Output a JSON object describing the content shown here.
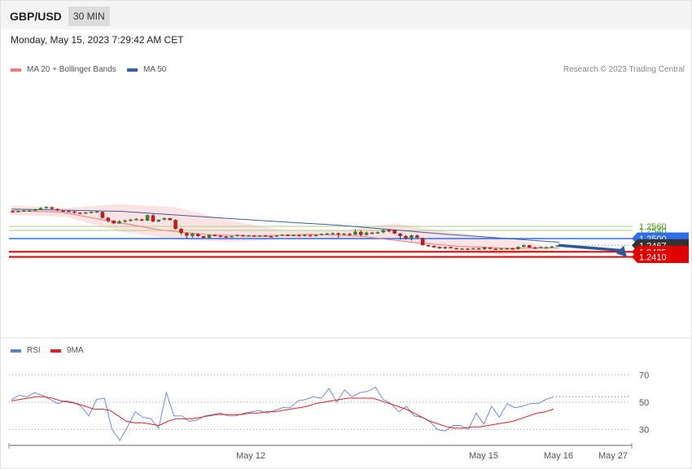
{
  "header": {
    "symbol": "GBP/USD",
    "timeframe": "30 MIN",
    "datetime": "Monday, May 15, 2023 7:29:42 AM CET"
  },
  "legend_main": [
    {
      "label": "MA 20 + Bollinger Bands",
      "color": "#f07a7a"
    },
    {
      "label": "MA 50",
      "color": "#3d5f9e"
    }
  ],
  "credit": "Research © 2023 Trading Central",
  "legend_rsi": [
    {
      "label": "RSI",
      "color": "#5b82d6"
    },
    {
      "label": "9MA",
      "color": "#e02020"
    }
  ],
  "chart_data": [
    {
      "type": "candlestick",
      "title": "GBP/USD",
      "timeframe": "30 MIN",
      "x_tick_labels": [
        "May 12",
        "May 15",
        "May 16",
        "May 27"
      ],
      "price_levels": [
        {
          "label": "1.2560",
          "value": 1.256,
          "color": "#a8d08d",
          "kind": "resistance"
        },
        {
          "label": "1.2540",
          "value": 1.254,
          "color": "#a8d08d",
          "kind": "resistance"
        },
        {
          "label": "1.2500",
          "value": 1.25,
          "color": "#2f6fe6",
          "kind": "pivot"
        },
        {
          "label": "1.2467",
          "value": 1.2467,
          "color": "#333333",
          "kind": "last_price"
        },
        {
          "label": "1.2435",
          "value": 1.2435,
          "color": "#e00000",
          "kind": "support"
        },
        {
          "label": "1.2410",
          "value": 1.241,
          "color": "#e00000",
          "kind": "support"
        }
      ],
      "projection": {
        "from": 1.2467,
        "to": 1.241,
        "direction": "down",
        "color": "#2e5a9c"
      },
      "series": [
        {
          "name": "MA 20 + Bollinger Bands",
          "color": "#f07a7a"
        },
        {
          "name": "MA 50",
          "color": "#3d5f9e"
        }
      ],
      "candles": [
        [
          1.2634,
          1.2633,
          1.2638,
          1.2629
        ],
        [
          1.2632,
          1.2635,
          1.2638,
          1.263
        ],
        [
          1.2634,
          1.2638,
          1.2641,
          1.2632
        ],
        [
          1.2636,
          1.2638,
          1.2641,
          1.2633
        ],
        [
          1.2638,
          1.2643,
          1.2646,
          1.2636
        ],
        [
          1.2644,
          1.265,
          1.2654,
          1.2641
        ],
        [
          1.2651,
          1.2655,
          1.2659,
          1.2647
        ],
        [
          1.2654,
          1.2646,
          1.2657,
          1.2642
        ],
        [
          1.2645,
          1.2638,
          1.2648,
          1.2634
        ],
        [
          1.2637,
          1.2636,
          1.264,
          1.2632
        ],
        [
          1.2636,
          1.2633,
          1.2639,
          1.263
        ],
        [
          1.2633,
          1.2627,
          1.2636,
          1.2622
        ],
        [
          1.2627,
          1.2626,
          1.263,
          1.2622
        ],
        [
          1.2625,
          1.2628,
          1.2632,
          1.2621
        ],
        [
          1.2626,
          1.2631,
          1.2634,
          1.2624
        ],
        [
          1.263,
          1.2633,
          1.2636,
          1.2628
        ],
        [
          1.2631,
          1.2602,
          1.2633,
          1.2598
        ],
        [
          1.2602,
          1.2587,
          1.2606,
          1.258
        ],
        [
          1.2588,
          1.2575,
          1.259,
          1.2571
        ],
        [
          1.2574,
          1.2585,
          1.259,
          1.2572
        ],
        [
          1.2583,
          1.2589,
          1.2593,
          1.2579
        ],
        [
          1.2588,
          1.2593,
          1.2597,
          1.2583
        ],
        [
          1.2591,
          1.2596,
          1.2601,
          1.2589
        ],
        [
          1.2594,
          1.2589,
          1.2598,
          1.2586
        ],
        [
          1.2588,
          1.2615,
          1.2618,
          1.2586
        ],
        [
          1.2614,
          1.2584,
          1.262,
          1.258
        ],
        [
          1.2584,
          1.2592,
          1.2595,
          1.258
        ],
        [
          1.2593,
          1.26,
          1.2604,
          1.259
        ],
        [
          1.26,
          1.2591,
          1.2603,
          1.2588
        ],
        [
          1.2591,
          1.2548,
          1.2595,
          1.2544
        ],
        [
          1.2548,
          1.2527,
          1.2551,
          1.2518
        ],
        [
          1.2527,
          1.2514,
          1.253,
          1.25
        ],
        [
          1.2512,
          1.2524,
          1.2528,
          1.2504
        ],
        [
          1.2522,
          1.2512,
          1.2527,
          1.2507
        ],
        [
          1.2512,
          1.2504,
          1.2514,
          1.25
        ],
        [
          1.2504,
          1.2518,
          1.2521,
          1.2501
        ],
        [
          1.2518,
          1.2514,
          1.2522,
          1.2511
        ],
        [
          1.2514,
          1.251,
          1.2517,
          1.2507
        ],
        [
          1.251,
          1.2509,
          1.2514,
          1.2506
        ],
        [
          1.2509,
          1.2512,
          1.2515,
          1.2507
        ],
        [
          1.2512,
          1.2518,
          1.2521,
          1.251
        ],
        [
          1.2516,
          1.2513,
          1.252,
          1.251
        ],
        [
          1.2514,
          1.2515,
          1.2518,
          1.2511
        ],
        [
          1.2515,
          1.2512,
          1.2518,
          1.251
        ],
        [
          1.2513,
          1.2515,
          1.2518,
          1.2511
        ],
        [
          1.2515,
          1.2513,
          1.2518,
          1.251
        ],
        [
          1.2512,
          1.251,
          1.2515,
          1.2507
        ],
        [
          1.251,
          1.2515,
          1.2518,
          1.2509
        ],
        [
          1.2514,
          1.2519,
          1.2521,
          1.2512
        ],
        [
          1.2518,
          1.2514,
          1.2521,
          1.2512
        ],
        [
          1.2514,
          1.2518,
          1.252,
          1.2511
        ],
        [
          1.2517,
          1.2514,
          1.252,
          1.2511
        ],
        [
          1.2514,
          1.2518,
          1.2521,
          1.2511
        ],
        [
          1.2517,
          1.2512,
          1.252,
          1.251
        ],
        [
          1.2512,
          1.2518,
          1.2521,
          1.251
        ],
        [
          1.2517,
          1.2523,
          1.2525,
          1.2515
        ],
        [
          1.2522,
          1.2525,
          1.2528,
          1.2519
        ],
        [
          1.2524,
          1.2526,
          1.253,
          1.252
        ],
        [
          1.2526,
          1.252,
          1.2529,
          1.2504
        ],
        [
          1.252,
          1.2524,
          1.2528,
          1.2517
        ],
        [
          1.2523,
          1.2519,
          1.2527,
          1.2516
        ],
        [
          1.2519,
          1.2534,
          1.2545,
          1.2517
        ],
        [
          1.2533,
          1.2518,
          1.2541,
          1.251
        ],
        [
          1.2518,
          1.253,
          1.2534,
          1.2514
        ],
        [
          1.2529,
          1.2526,
          1.2533,
          1.2523
        ],
        [
          1.2526,
          1.2531,
          1.2535,
          1.2522
        ],
        [
          1.2531,
          1.2542,
          1.2545,
          1.2526
        ],
        [
          1.2543,
          1.2535,
          1.2546,
          1.2532
        ],
        [
          1.2542,
          1.2525,
          1.2544,
          1.2522
        ],
        [
          1.2525,
          1.2512,
          1.2527,
          1.2495
        ],
        [
          1.2512,
          1.2502,
          1.2518,
          1.2495
        ],
        [
          1.2503,
          1.2516,
          1.252,
          1.249
        ],
        [
          1.2515,
          1.2505,
          1.252,
          1.2501
        ],
        [
          1.2502,
          1.2468,
          1.2505,
          1.2465
        ],
        [
          1.2468,
          1.2463,
          1.247,
          1.2459
        ],
        [
          1.2464,
          1.2457,
          1.2467,
          1.2453
        ],
        [
          1.2459,
          1.2452,
          1.2462,
          1.2449
        ],
        [
          1.2452,
          1.2459,
          1.2461,
          1.2448
        ],
        [
          1.2459,
          1.2453,
          1.2461,
          1.2451
        ],
        [
          1.2453,
          1.2449,
          1.2455,
          1.2446
        ],
        [
          1.245,
          1.2451,
          1.2453,
          1.2447
        ],
        [
          1.2451,
          1.245,
          1.2453,
          1.2447
        ],
        [
          1.245,
          1.2452,
          1.2455,
          1.2446
        ],
        [
          1.2452,
          1.2448,
          1.2455,
          1.2446
        ],
        [
          1.2448,
          1.2458,
          1.246,
          1.2444
        ],
        [
          1.2456,
          1.245,
          1.2458,
          1.2446
        ],
        [
          1.245,
          1.2449,
          1.2452,
          1.2447
        ],
        [
          1.2449,
          1.2451,
          1.2453,
          1.2447
        ],
        [
          1.245,
          1.2452,
          1.2455,
          1.2447
        ],
        [
          1.2452,
          1.2448,
          1.2455,
          1.2446
        ],
        [
          1.2448,
          1.2459,
          1.2462,
          1.2446
        ],
        [
          1.246,
          1.2468,
          1.247,
          1.2457
        ],
        [
          1.2467,
          1.2456,
          1.2469,
          1.2453
        ],
        [
          1.2456,
          1.2455,
          1.246,
          1.2453
        ],
        [
          1.2455,
          1.2458,
          1.2461,
          1.2453
        ],
        [
          1.2457,
          1.2457,
          1.2461,
          1.2453
        ],
        [
          1.2457,
          1.2461,
          1.2464,
          1.2455
        ],
        [
          1.2462,
          1.2467,
          1.2469,
          1.246
        ]
      ],
      "ma50": [
        1.2645,
        1.2634,
        1.2598,
        1.2565,
        1.252,
        1.2482
      ],
      "ma20": [
        1.2638,
        1.263,
        1.2585,
        1.2542,
        1.2518,
        1.2513,
        1.2521,
        1.2512,
        1.2483,
        1.2462,
        1.2452,
        1.2455
      ],
      "bb_upper": [
        1.2662,
        1.265,
        1.267,
        1.2654,
        1.259,
        1.2541,
        1.2538,
        1.2575,
        1.2533,
        1.2505,
        1.2455
      ],
      "bb_lower": [
        1.2617,
        1.2606,
        1.2534,
        1.2497,
        1.2483,
        1.2498,
        1.2495,
        1.2496,
        1.2443,
        1.242,
        1.2448
      ]
    },
    {
      "type": "line",
      "title": "RSI",
      "y_ticks": [
        70,
        50,
        30
      ],
      "ylim": [
        20,
        80
      ],
      "series": [
        {
          "name": "RSI",
          "color": "#5b82d6",
          "values": [
            52,
            55,
            54,
            57,
            55,
            52,
            49,
            51,
            50,
            47,
            40,
            52,
            53,
            30,
            22,
            32,
            43,
            39,
            38,
            31,
            57,
            40,
            40,
            36,
            37,
            40,
            41,
            42,
            40,
            40,
            42,
            43,
            44,
            42,
            44,
            46,
            46,
            51,
            52,
            54,
            53,
            60,
            50,
            59,
            54,
            57,
            58,
            61,
            52,
            49,
            43,
            47,
            40,
            39,
            36,
            30,
            29,
            33,
            33,
            30,
            42,
            34,
            47,
            39,
            49,
            46,
            47,
            49,
            49,
            52,
            54
          ]
        },
        {
          "name": "9MA",
          "color": "#e02020",
          "values": [
            51,
            52,
            53,
            54,
            54,
            53,
            51,
            50,
            49,
            47,
            45,
            45,
            44,
            40,
            36,
            35,
            35,
            34,
            33,
            36,
            38,
            38,
            38,
            39,
            40,
            41,
            41,
            41,
            41,
            42,
            42,
            43,
            43,
            44,
            45,
            46,
            47,
            49,
            50,
            51,
            52,
            53,
            53,
            53,
            53,
            51,
            49,
            47,
            45,
            42,
            39,
            36,
            34,
            32,
            31,
            31,
            32,
            32,
            33,
            34,
            35,
            36,
            38,
            40,
            42,
            43,
            45
          ]
        }
      ]
    }
  ]
}
